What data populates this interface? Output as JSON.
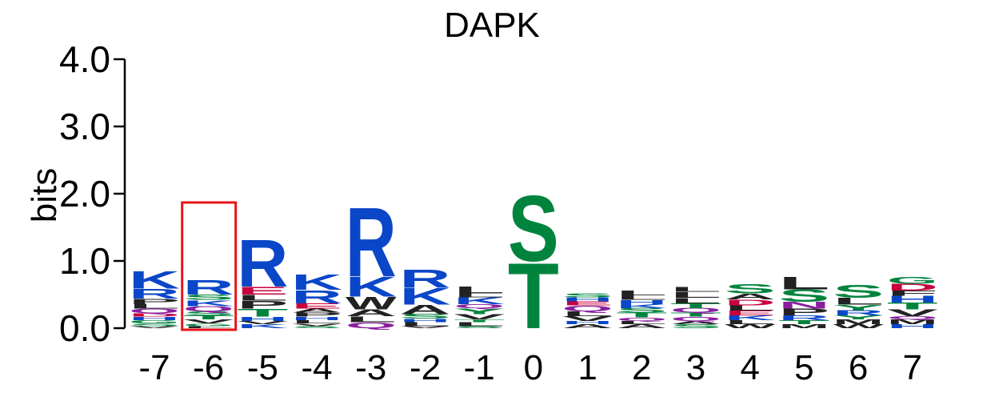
{
  "chart_data": {
    "type": "sequence-logo",
    "title": "DAPK",
    "ylabel": "bits",
    "ylim": [
      0,
      4
    ],
    "yticks": [
      "0.0",
      "1.0",
      "2.0",
      "3.0",
      "4.0"
    ],
    "positions": [
      "-7",
      "-6",
      "-5",
      "-4",
      "-3",
      "-2",
      "-1",
      "0",
      "1",
      "2",
      "3",
      "4",
      "5",
      "6",
      "7"
    ],
    "highlighted_position": "-6",
    "highlight_color": "#e8141b",
    "residue_colors": {
      "basic": "#0a46c8",
      "polar": "#00843d",
      "acidic": "#c8003c",
      "hydrophobic": "#222222",
      "amide": "#8a1fa0"
    },
    "columns": [
      {
        "pos": "-7",
        "letters": [
          {
            "aa": "V",
            "bits": 0.03
          },
          {
            "aa": "S",
            "bits": 0.04
          },
          {
            "aa": "G",
            "bits": 0.05
          },
          {
            "aa": "H",
            "bits": 0.05
          },
          {
            "aa": "D",
            "bits": 0.05
          },
          {
            "aa": "Q",
            "bits": 0.07
          },
          {
            "aa": "L",
            "bits": 0.07
          },
          {
            "aa": "P",
            "bits": 0.08
          },
          {
            "aa": "R",
            "bits": 0.15
          },
          {
            "aa": "K",
            "bits": 0.27
          }
        ]
      },
      {
        "pos": "-6",
        "letters": [
          {
            "aa": "L",
            "bits": 0.03
          },
          {
            "aa": "G",
            "bits": 0.04
          },
          {
            "aa": "V",
            "bits": 0.06
          },
          {
            "aa": "T",
            "bits": 0.06
          },
          {
            "aa": "S",
            "bits": 0.06
          },
          {
            "aa": "Q",
            "bits": 0.08
          },
          {
            "aa": "K",
            "bits": 0.09
          },
          {
            "aa": "S",
            "bits": 0.08
          },
          {
            "aa": "R",
            "bits": 0.22
          }
        ]
      },
      {
        "pos": "-5",
        "letters": [
          {
            "aa": "K",
            "bits": 0.06
          },
          {
            "aa": "V",
            "bits": 0.05
          },
          {
            "aa": "H",
            "bits": 0.06
          },
          {
            "aa": "T",
            "bits": 0.12
          },
          {
            "aa": "P",
            "bits": 0.12
          },
          {
            "aa": "L",
            "bits": 0.09
          },
          {
            "aa": "E",
            "bits": 0.12
          },
          {
            "aa": "R",
            "bits": 0.72
          }
        ]
      },
      {
        "pos": "-4",
        "letters": [
          {
            "aa": "S",
            "bits": 0.03
          },
          {
            "aa": "V",
            "bits": 0.04
          },
          {
            "aa": "L",
            "bits": 0.05
          },
          {
            "aa": "H",
            "bits": 0.05
          },
          {
            "aa": "P",
            "bits": 0.06
          },
          {
            "aa": "A",
            "bits": 0.06
          },
          {
            "aa": "E",
            "bits": 0.08
          },
          {
            "aa": "R",
            "bits": 0.2
          },
          {
            "aa": "K",
            "bits": 0.24
          }
        ]
      },
      {
        "pos": "-3",
        "letters": [
          {
            "aa": "Q",
            "bits": 0.09
          },
          {
            "aa": "L",
            "bits": 0.09
          },
          {
            "aa": "A",
            "bits": 0.1
          },
          {
            "aa": "W",
            "bits": 0.19
          },
          {
            "aa": "K",
            "bits": 0.3
          },
          {
            "aa": "R",
            "bits": 1.06
          }
        ]
      },
      {
        "pos": "-2",
        "letters": [
          {
            "aa": "V",
            "bits": 0.03
          },
          {
            "aa": "L",
            "bits": 0.06
          },
          {
            "aa": "H",
            "bits": 0.05
          },
          {
            "aa": "S",
            "bits": 0.07
          },
          {
            "aa": "A",
            "bits": 0.14
          },
          {
            "aa": "K",
            "bits": 0.25
          },
          {
            "aa": "R",
            "bits": 0.28
          }
        ]
      },
      {
        "pos": "-1",
        "letters": [
          {
            "aa": "S",
            "bits": 0.03
          },
          {
            "aa": "L",
            "bits": 0.06
          },
          {
            "aa": "T",
            "bits": 0.04
          },
          {
            "aa": "V",
            "bits": 0.08
          },
          {
            "aa": "Y",
            "bits": 0.09
          },
          {
            "aa": "Q",
            "bits": 0.06
          },
          {
            "aa": "K",
            "bits": 0.1
          },
          {
            "aa": "L",
            "bits": 0.06
          },
          {
            "aa": "L",
            "bits": 0.1
          }
        ]
      },
      {
        "pos": "0",
        "letters": [
          {
            "aa": "T",
            "bits": 1.0
          },
          {
            "aa": "S",
            "bits": 1.0
          }
        ]
      },
      {
        "pos": "1",
        "letters": [
          {
            "aa": "A",
            "bits": 0.06
          },
          {
            "aa": "H",
            "bits": 0.05
          },
          {
            "aa": "V",
            "bits": 0.07
          },
          {
            "aa": "L",
            "bits": 0.07
          },
          {
            "aa": "Q",
            "bits": 0.09
          },
          {
            "aa": "E",
            "bits": 0.06
          },
          {
            "aa": "H",
            "bits": 0.06
          },
          {
            "aa": "S",
            "bits": 0.06
          }
        ]
      },
      {
        "pos": "2",
        "letters": [
          {
            "aa": "A",
            "bits": 0.06
          },
          {
            "aa": "L",
            "bits": 0.05
          },
          {
            "aa": "Q",
            "bits": 0.05
          },
          {
            "aa": "T",
            "bits": 0.07
          },
          {
            "aa": "S",
            "bits": 0.07
          },
          {
            "aa": "K",
            "bits": 0.06
          },
          {
            "aa": "H",
            "bits": 0.06
          },
          {
            "aa": "L",
            "bits": 0.07
          },
          {
            "aa": "L",
            "bits": 0.07
          }
        ]
      },
      {
        "pos": "3",
        "letters": [
          {
            "aa": "S",
            "bits": 0.06
          },
          {
            "aa": "A",
            "bits": 0.05
          },
          {
            "aa": "Q",
            "bits": 0.06
          },
          {
            "aa": "T",
            "bits": 0.06
          },
          {
            "aa": "Q",
            "bits": 0.07
          },
          {
            "aa": "T",
            "bits": 0.07
          },
          {
            "aa": "L",
            "bits": 0.08
          },
          {
            "aa": "L",
            "bits": 0.09
          },
          {
            "aa": "L",
            "bits": 0.07
          }
        ]
      },
      {
        "pos": "4",
        "letters": [
          {
            "aa": "W",
            "bits": 0.06
          },
          {
            "aa": "L",
            "bits": 0.06
          },
          {
            "aa": "K",
            "bits": 0.07
          },
          {
            "aa": "E",
            "bits": 0.07
          },
          {
            "aa": "L",
            "bits": 0.08
          },
          {
            "aa": "D",
            "bits": 0.09
          },
          {
            "aa": "A",
            "bits": 0.09
          },
          {
            "aa": "S",
            "bits": 0.14
          }
        ]
      },
      {
        "pos": "5",
        "letters": [
          {
            "aa": "M",
            "bits": 0.06
          },
          {
            "aa": "T",
            "bits": 0.06
          },
          {
            "aa": "R",
            "bits": 0.07
          },
          {
            "aa": "P",
            "bits": 0.1
          },
          {
            "aa": "N",
            "bits": 0.1
          },
          {
            "aa": "S",
            "bits": 0.19
          },
          {
            "aa": "L",
            "bits": 0.19
          }
        ]
      },
      {
        "pos": "6",
        "letters": [
          {
            "aa": "W",
            "bits": 0.06
          },
          {
            "aa": "M",
            "bits": 0.07
          },
          {
            "aa": "Y",
            "bits": 0.06
          },
          {
            "aa": "R",
            "bits": 0.08
          },
          {
            "aa": "Y",
            "bits": 0.08
          },
          {
            "aa": "L",
            "bits": 0.1
          },
          {
            "aa": "S",
            "bits": 0.2
          }
        ]
      },
      {
        "pos": "7",
        "letters": [
          {
            "aa": "H",
            "bits": 0.06
          },
          {
            "aa": "M",
            "bits": 0.07
          },
          {
            "aa": "Q",
            "bits": 0.05
          },
          {
            "aa": "V",
            "bits": 0.1
          },
          {
            "aa": "T",
            "bits": 0.1
          },
          {
            "aa": "H",
            "bits": 0.1
          },
          {
            "aa": "F",
            "bits": 0.08
          },
          {
            "aa": "D",
            "bits": 0.1
          },
          {
            "aa": "G",
            "bits": 0.1
          }
        ]
      }
    ]
  }
}
